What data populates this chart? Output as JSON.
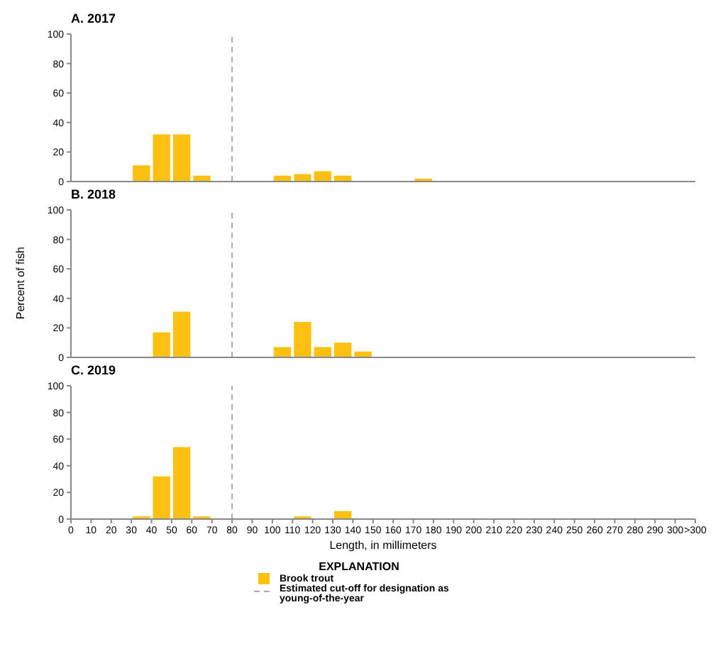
{
  "chart_data": [
    {
      "type": "histogram",
      "title": "A.  2017",
      "bins": [
        0,
        10,
        20,
        30,
        40,
        50,
        60,
        70,
        80,
        90,
        100,
        110,
        120,
        130,
        140,
        150,
        160,
        170,
        180,
        190,
        200,
        210,
        220,
        230,
        240,
        250,
        260,
        270,
        280,
        290,
        300,
        310
      ],
      "series": [
        {
          "color": "#fcc010",
          "values": [
            0,
            0,
            0,
            11,
            32,
            32,
            4,
            0,
            0,
            0,
            4,
            5,
            7,
            4,
            0,
            0,
            0,
            2,
            0,
            0,
            0,
            0,
            0,
            0,
            0,
            0,
            0,
            0,
            0,
            0,
            0
          ]
        }
      ],
      "xlim": [
        0,
        310
      ],
      "ylim": [
        0,
        100
      ],
      "yticks": [
        0,
        20,
        40,
        60,
        80,
        100
      ],
      "tick_labels": "y",
      "ref_lines": [
        {
          "axis": "x",
          "value": 80,
          "color": "#aaaaaa",
          "line_style": "dashed"
        }
      ]
    },
    {
      "type": "histogram",
      "title": "B.  2018",
      "ylabel": "Percent of fish",
      "bins": [
        0,
        10,
        20,
        30,
        40,
        50,
        60,
        70,
        80,
        90,
        100,
        110,
        120,
        130,
        140,
        150,
        160,
        170,
        180,
        190,
        200,
        210,
        220,
        230,
        240,
        250,
        260,
        270,
        280,
        290,
        300,
        310
      ],
      "series": [
        {
          "color": "#fcc010",
          "values": [
            0,
            0,
            0,
            0,
            17,
            31,
            0,
            0,
            0,
            0,
            7,
            24,
            7,
            10,
            4,
            0,
            0,
            0,
            0,
            0,
            0,
            0,
            0,
            0,
            0,
            0,
            0,
            0,
            0,
            0,
            0
          ]
        }
      ],
      "xlim": [
        0,
        310
      ],
      "ylim": [
        0,
        100
      ],
      "yticks": [
        0,
        20,
        40,
        60,
        80,
        100
      ],
      "tick_labels": "y",
      "ref_lines": [
        {
          "axis": "x",
          "value": 80,
          "color": "#aaaaaa",
          "line_style": "dashed"
        }
      ]
    },
    {
      "type": "histogram",
      "title": "C.  2019",
      "xlabel": "Length, in millimeters",
      "legend_title": "EXPLANATION",
      "legend": "bottom",
      "bins": [
        0,
        10,
        20,
        30,
        40,
        50,
        60,
        70,
        80,
        90,
        100,
        110,
        120,
        130,
        140,
        150,
        160,
        170,
        180,
        190,
        200,
        210,
        220,
        230,
        240,
        250,
        260,
        270,
        280,
        290,
        300,
        310
      ],
      "series": [
        {
          "name": "Brook trout",
          "color": "#fcc010",
          "values": [
            0,
            0,
            0,
            2,
            32,
            54,
            2,
            0,
            0,
            0,
            0,
            2,
            0,
            6,
            0,
            0,
            0,
            0,
            0,
            0,
            0,
            0,
            0,
            0,
            0,
            0,
            0,
            0,
            0,
            0,
            0
          ]
        }
      ],
      "xlim": [
        0,
        310
      ],
      "ylim": [
        0,
        100
      ],
      "yticks": [
        0,
        20,
        40,
        60,
        80,
        100
      ],
      "xticks": [
        0,
        10,
        20,
        30,
        40,
        50,
        60,
        70,
        80,
        90,
        100,
        110,
        120,
        130,
        140,
        150,
        160,
        170,
        180,
        190,
        200,
        210,
        220,
        230,
        240,
        250,
        260,
        270,
        280,
        290,
        300,
        {
          "value": 310,
          "label": ">300"
        }
      ],
      "ref_lines": [
        {
          "axis": "x",
          "value": 80,
          "color": "#aaaaaa",
          "line_style": "dashed",
          "label": "Estimated cut-off for designation as young-of-the-year"
        }
      ]
    }
  ]
}
